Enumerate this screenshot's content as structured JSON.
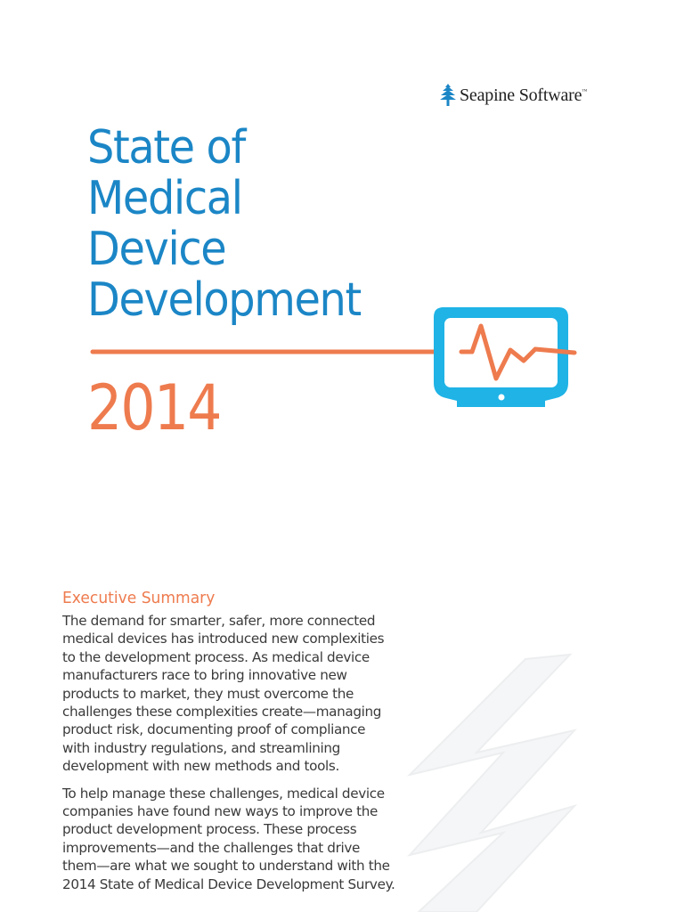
{
  "brand": {
    "name": "Seapine Software",
    "trademark": "™"
  },
  "cover": {
    "title_lines": [
      "State of",
      "Medical",
      "Device",
      "Development"
    ],
    "year": "2014"
  },
  "summary": {
    "heading": "Executive Summary",
    "paragraphs": [
      "The demand for smarter, safer, more connected medical devices has introduced new complexities to the development process. As medical device manufacturers race to bring innovative new products to market, they must overcome the challenges these complexities create—managing product risk, documenting proof of compliance with industry regulations, and streamlining development with new methods and tools.",
      "To help manage these challenges, medical device companies have found new ways to improve the product development process. These process improvements—and the challenges that drive them—are what we sought to understand with the 2014 State of Medical Device Development Survey."
    ]
  },
  "icons": {
    "logo": "seapine-tree-logo",
    "monitor": "heart-monitor-icon",
    "watermark": "zigzag-watermark"
  },
  "colors": {
    "blue": "#1b86c6",
    "cyan": "#1fb3e6",
    "orange": "#ee7b4e",
    "text": "#3a3a3a"
  }
}
